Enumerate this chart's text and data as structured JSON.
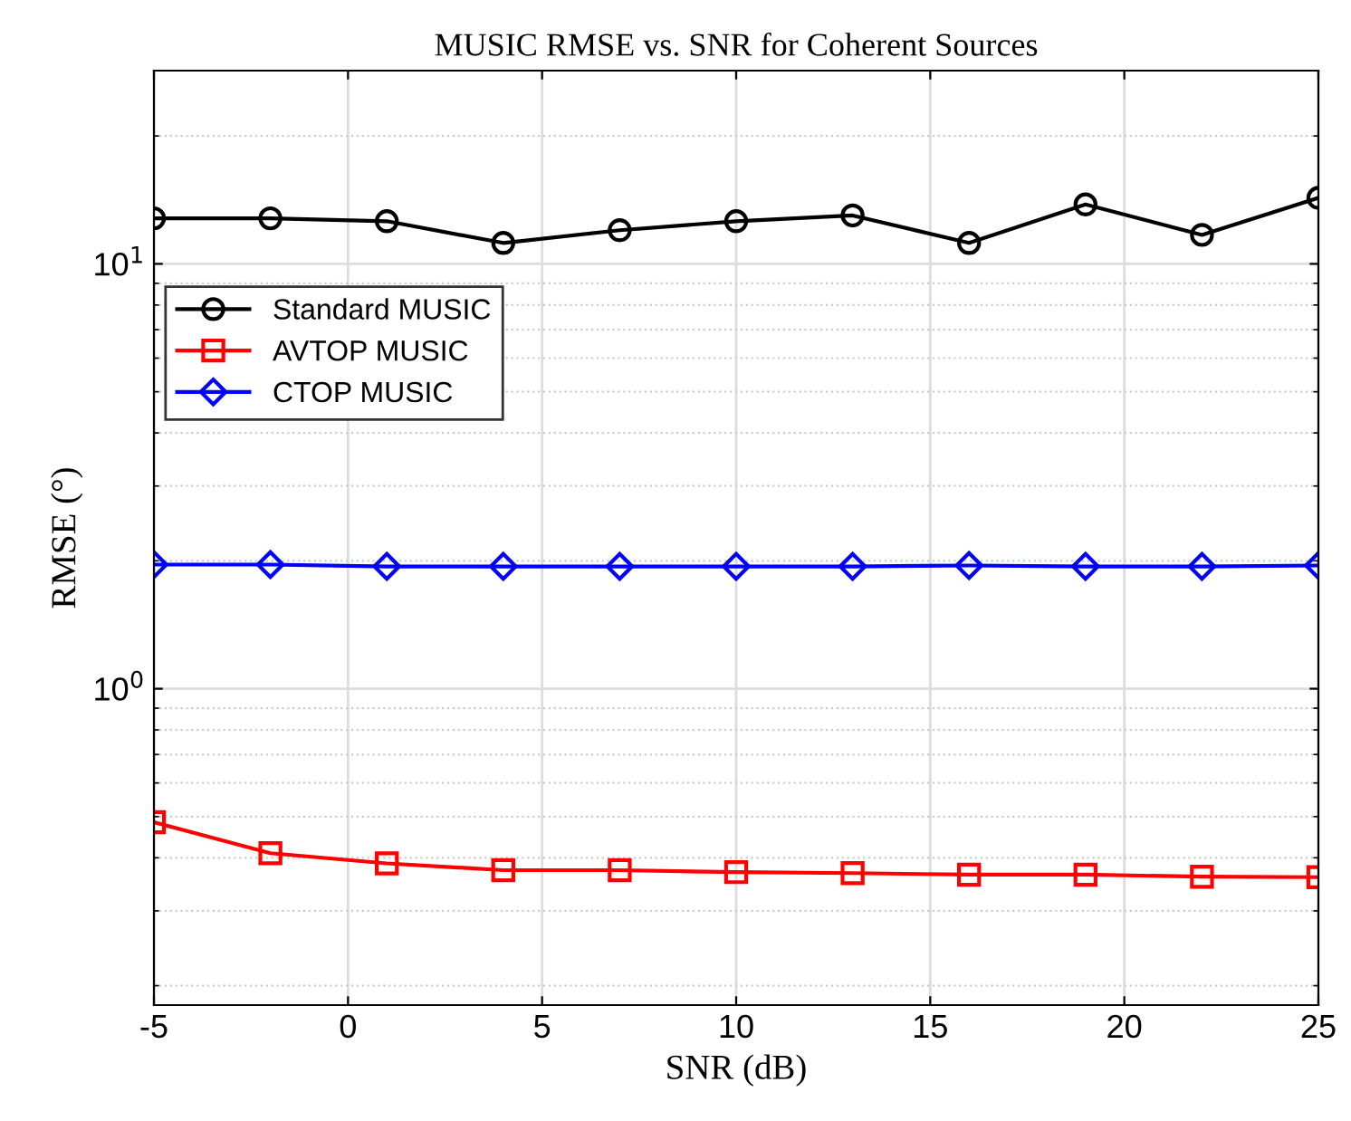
{
  "chart_data": {
    "type": "line",
    "title": "MUSIC RMSE vs. SNR for Coherent Sources",
    "xlabel": "SNR (dB)",
    "ylabel": "RMSE (°)",
    "x": [
      -5,
      -2,
      1,
      4,
      7,
      10,
      13,
      16,
      19,
      22,
      25
    ],
    "series": [
      {
        "name": "Standard MUSIC",
        "color": "#000000",
        "marker": "circle",
        "values": [
          12.8,
          12.8,
          12.6,
          11.2,
          12.0,
          12.6,
          13.0,
          11.2,
          13.8,
          11.7,
          14.3
        ]
      },
      {
        "name": "AVTOP MUSIC",
        "color": "#ff0000",
        "marker": "square",
        "values": [
          0.485,
          0.41,
          0.388,
          0.374,
          0.374,
          0.37,
          0.368,
          0.365,
          0.365,
          0.361,
          0.36
        ]
      },
      {
        "name": "CTOP MUSIC",
        "color": "#0000ff",
        "marker": "diamond",
        "values": [
          1.96,
          1.96,
          1.94,
          1.94,
          1.94,
          1.94,
          1.94,
          1.95,
          1.94,
          1.94,
          1.95
        ]
      }
    ],
    "log": "y",
    "xlim": [
      -5,
      25
    ],
    "xticks": [
      -5,
      0,
      5,
      10,
      15,
      20,
      25
    ],
    "ylim": [
      0.18,
      28.5
    ],
    "yticks": [
      {
        "value": 1,
        "label": "10$^{0}$"
      },
      {
        "value": 10,
        "label": "10$^{1}$"
      }
    ],
    "grid": true,
    "legend": "top left",
    "line_style": "solid"
  }
}
